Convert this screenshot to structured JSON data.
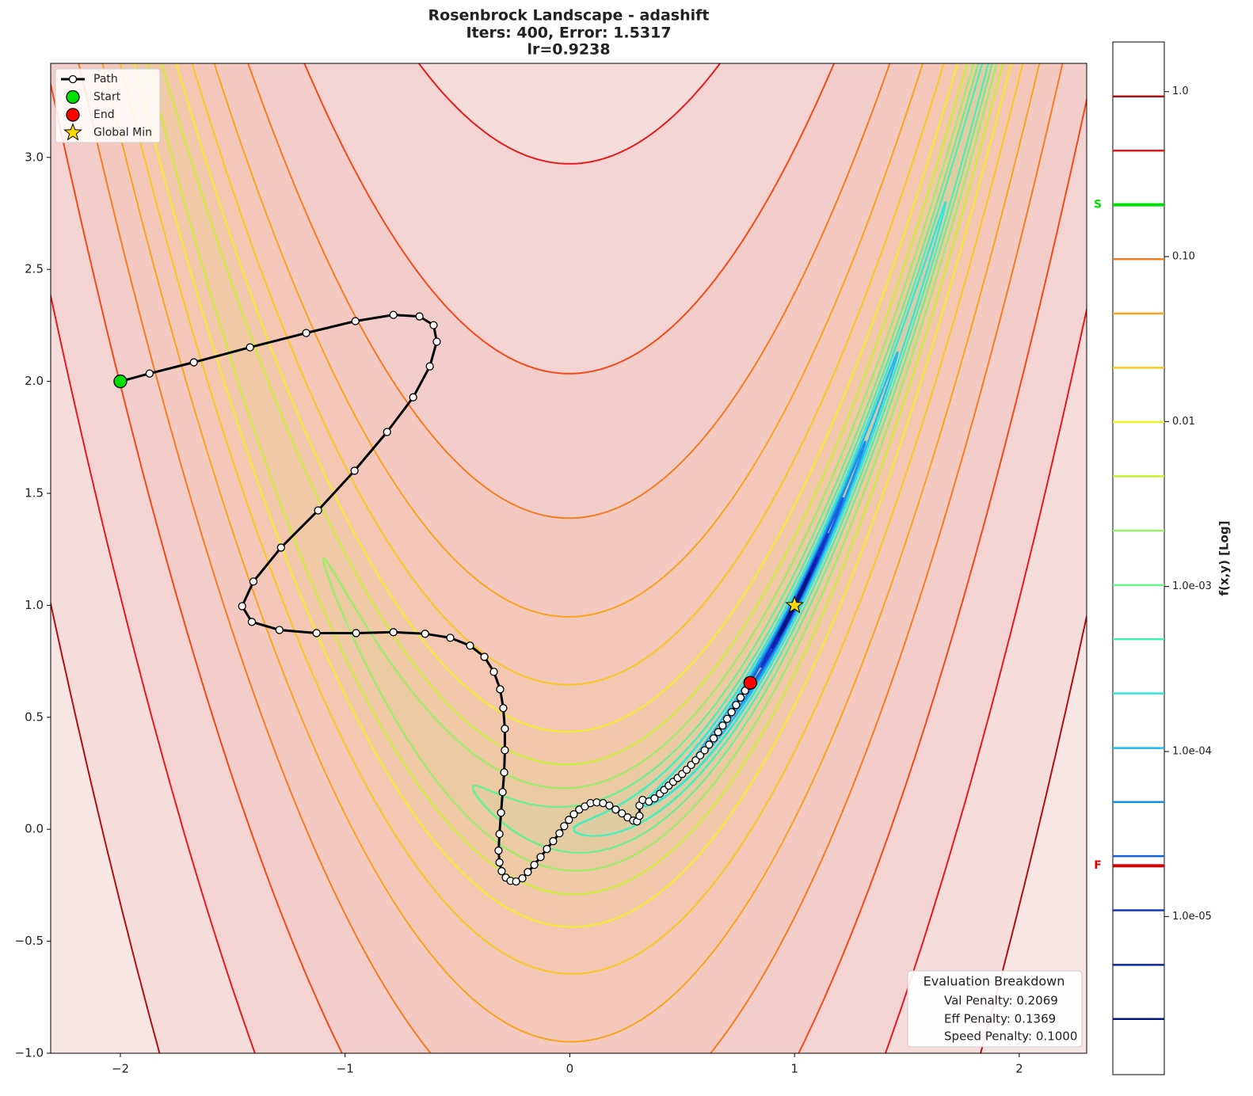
{
  "chart_data": {
    "type": "contour",
    "title": "Rosenbrock Landscape - adashift",
    "subtitle": [
      "Iters: 400, Error: 1.5317",
      "lr=0.9238"
    ],
    "xlim": [
      -2.31,
      2.3
    ],
    "ylim": [
      -1.0,
      3.42
    ],
    "xticks": [
      {
        "value": -2,
        "label": "−2"
      },
      {
        "value": -1,
        "label": "−1"
      },
      0,
      1,
      2
    ],
    "yticks": [
      {
        "value": -1.0,
        "label": "−1.0"
      },
      {
        "value": -0.5,
        "label": "−0.5"
      },
      {
        "value": 0.0,
        "label": "0.0"
      },
      {
        "value": 0.5,
        "label": "0.5"
      },
      {
        "value": 1.0,
        "label": "1.0"
      },
      {
        "value": 1.5,
        "label": "1.5"
      },
      {
        "value": 2.0,
        "label": "2.0"
      },
      {
        "value": 2.5,
        "label": "2.5"
      },
      {
        "value": 3.0,
        "label": "3.0"
      }
    ],
    "contour": {
      "levels": [
        1885,
        884,
        415,
        194,
        91,
        42.7,
        20,
        9.4,
        4.4,
        2.05,
        0.967,
        0.453,
        0.211,
        0.0995,
        0.0467,
        0.022,
        0.0103,
        0.0048
      ],
      "colors": [
        "#b01010",
        "#e41a1c",
        "#f04a1a",
        "#f47c20",
        "#f9a21c",
        "#f9c81e",
        "#f0ef24",
        "#c8f02c",
        "#98f068",
        "#68f08c",
        "#44f0b8",
        "#2ce8dc",
        "#1cbcf0",
        "#1a8ee8",
        "#1860dc",
        "#1436c8",
        "#0e20a8",
        "#0a1480"
      ]
    },
    "legend": "upper left",
    "series": [
      {
        "name": "Path",
        "marker": "line-circle",
        "color": "#000000",
        "marker_color": "#ffffff",
        "x": [
          -2.0,
          -1.87,
          -1.673,
          -1.423,
          -1.173,
          -0.954,
          -0.785,
          -0.669,
          -0.606,
          -0.592,
          -0.623,
          -0.697,
          -0.813,
          -0.958,
          -1.12,
          -1.285,
          -1.408,
          -1.458,
          -1.415,
          -1.292,
          -1.127,
          -0.951,
          -0.785,
          -0.644,
          -0.532,
          -0.444,
          -0.38,
          -0.338,
          -0.31,
          -0.296,
          -0.289,
          -0.289,
          -0.292,
          -0.299,
          -0.306,
          -0.313,
          -0.317,
          -0.313,
          -0.303,
          -0.285,
          -0.264,
          -0.239,
          -0.211,
          -0.187,
          -0.158,
          -0.13,
          -0.102,
          -0.074,
          -0.046,
          -0.025,
          -0.004,
          0.018,
          0.042,
          0.067,
          0.092,
          0.12,
          0.148,
          0.176,
          0.204,
          0.232,
          0.257,
          0.282,
          0.299,
          0.31,
          0.31,
          0.324,
          0.352,
          0.377,
          0.401,
          0.42,
          0.44,
          0.46,
          0.48,
          0.5,
          0.52,
          0.54,
          0.56,
          0.58,
          0.6,
          0.62,
          0.64,
          0.66,
          0.68,
          0.7,
          0.72,
          0.74,
          0.76,
          0.78,
          0.803
        ],
        "y": [
          2.0,
          2.035,
          2.085,
          2.152,
          2.216,
          2.269,
          2.297,
          2.29,
          2.251,
          2.177,
          2.067,
          1.929,
          1.774,
          1.601,
          1.424,
          1.258,
          1.106,
          0.996,
          0.926,
          0.89,
          0.876,
          0.876,
          0.88,
          0.873,
          0.855,
          0.82,
          0.77,
          0.703,
          0.625,
          0.541,
          0.449,
          0.353,
          0.254,
          0.166,
          0.074,
          -0.021,
          -0.095,
          -0.148,
          -0.187,
          -0.216,
          -0.23,
          -0.233,
          -0.219,
          -0.191,
          -0.159,
          -0.124,
          -0.088,
          -0.053,
          -0.018,
          0.014,
          0.042,
          0.067,
          0.088,
          0.102,
          0.117,
          0.12,
          0.117,
          0.106,
          0.088,
          0.071,
          0.053,
          0.039,
          0.035,
          0.06,
          0.106,
          0.131,
          0.124,
          0.138,
          0.159,
          0.176,
          0.195,
          0.212,
          0.229,
          0.247,
          0.266,
          0.287,
          0.308,
          0.33,
          0.353,
          0.378,
          0.406,
          0.434,
          0.463,
          0.493,
          0.523,
          0.555,
          0.588,
          0.619,
          0.654
        ]
      },
      {
        "name": "Start",
        "marker": "circle",
        "color": "#00e000",
        "x": [
          -2.0
        ],
        "y": [
          2.0
        ]
      },
      {
        "name": "End",
        "marker": "circle",
        "color": "#ff0000",
        "x": [
          0.803
        ],
        "y": [
          0.654
        ]
      },
      {
        "name": "Global Min",
        "marker": "star",
        "color": "#ffd700",
        "x": [
          1.0
        ],
        "y": [
          1.0
        ]
      }
    ],
    "annotation": {
      "title": "Evaluation Breakdown",
      "lines": [
        "Val Penalty: 0.2069",
        "Eff Penalty: 0.1369",
        "Speed Penalty: 0.1000"
      ]
    },
    "colorbar": {
      "label": "f(x,y) [Log]",
      "scale": "log",
      "lim": [
        1.1e-06,
        2.0
      ],
      "ticks": [
        {
          "value": 1.0,
          "label": "1.0"
        },
        {
          "value": 0.1,
          "label": "0.10"
        },
        {
          "value": 0.01,
          "label": "0.01"
        },
        {
          "value": 0.001,
          "label": "1.0e-03"
        },
        {
          "value": 0.0001,
          "label": "1.0e-04"
        },
        {
          "value": 1e-05,
          "label": "1.0e-05"
        }
      ],
      "levels": [
        0.936,
        0.439,
        0.206,
        0.0965,
        0.0452,
        0.0212,
        0.00994,
        0.00466,
        0.00218,
        0.00102,
        0.00048,
        0.000225,
        0.000105,
        4.94e-05,
        2.32e-05,
        1.09e-05,
        5.09e-06,
        2.39e-06
      ],
      "markers": [
        {
          "label": "S",
          "value": 0.206,
          "color": "#00e000"
        },
        {
          "label": "F",
          "value": 2.03e-05,
          "color": "#e00000"
        }
      ]
    }
  }
}
